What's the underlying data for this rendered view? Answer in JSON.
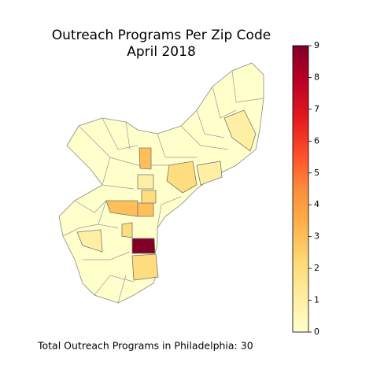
{
  "chart_data": {
    "type": "choropleth",
    "title": "Outreach Programs Per Zip Code",
    "subtitle": "April 2018",
    "annotation": "Total Outreach Programs in Philadelphia: 30",
    "values": [
      9,
      3,
      3,
      3,
      1,
      2,
      1,
      1,
      2,
      1,
      2,
      2
    ],
    "colormap": [
      "#ffffcc",
      "#ffeda0",
      "#fed976",
      "#feb24c",
      "#fd8d3c",
      "#fc4e2a",
      "#e31a1c",
      "#bd0026",
      "#800026"
    ],
    "clim": [
      0,
      9
    ],
    "cticks": [
      0,
      1,
      2,
      3,
      4,
      5,
      6,
      7,
      8,
      9
    ]
  }
}
